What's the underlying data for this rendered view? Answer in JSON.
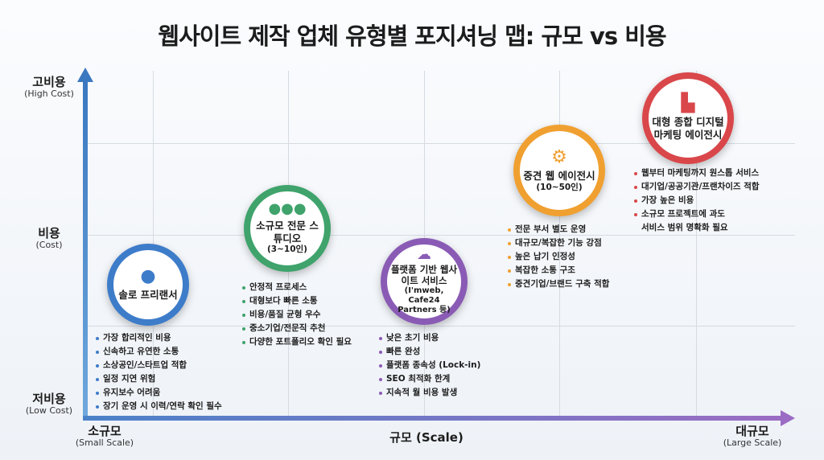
{
  "title": "웹사이트 제작 업체 유형별 포지셔닝 맵: 규모 vs 비용",
  "y_axis": {
    "high": {
      "label": "고비용",
      "sub": "(High Cost)"
    },
    "mid": {
      "label": "비용",
      "sub": "(Cost)"
    },
    "low": {
      "label": "저비용",
      "sub": "(Low Cost)"
    }
  },
  "x_axis": {
    "small": {
      "label": "소규모",
      "sub": "(Small Scale)"
    },
    "mid": {
      "label": "규모 (Scale)"
    },
    "large": {
      "label": "대규모",
      "sub": "(Large Scale)"
    }
  },
  "types": [
    {
      "name": "솔로 프리랜서",
      "sub": "",
      "icon": "person-icon",
      "color": "#3d7cc9",
      "points": [
        "가장 합리적인 비용",
        "신속하고 유연한 소통",
        "소상공인/스타트업 적합",
        "일정 지연 위험",
        "유지보수 어려움",
        "장기 운영 시 이력/연락 확인 필수"
      ]
    },
    {
      "name": "소규모 전문 스튜디오",
      "sub": "(3~10인)",
      "icon": "group-icon",
      "color": "#3fa36b",
      "points": [
        "안정적 프로세스",
        "대형보다 빠른 소통",
        "비용/품질 균형 우수",
        "중소기업/전문직 추천",
        "다양한 포트폴리오 확인 필요"
      ]
    },
    {
      "name": "플랫폼 기반 웹사이트 서비스",
      "sub": "(I'mweb, Cafe24 Partners 등)",
      "icon": "cloud-icon",
      "color": "#8a5bb5",
      "points": [
        "낮은 초기 비용",
        "빠른 완성",
        "플랫폼 종속성 (Lock-in)",
        "SEO 최적화 한계",
        "지속적 월 비용 발생"
      ]
    },
    {
      "name": "중견 웹 에이전시",
      "sub": "(10~50인)",
      "icon": "gears-icon",
      "color": "#f0a030",
      "points": [
        "전문 부서 별도 운영",
        "대규모/복잡한 기능 강점",
        "높은 납기 인정성",
        "복잡한 소통 구조",
        "중견기업/브랜드 구축 적합"
      ]
    },
    {
      "name": "대형 종합 디지털 마케팅 에이전시",
      "sub": "",
      "icon": "building-icon",
      "color": "#d9474a",
      "points": [
        "웹부터 마케팅까지 원스톱 서비스",
        "대기업/공공기관/프랜차이즈 적합",
        "가장 높은 비용",
        "소규모 프로젝트에 과도\n서비스 범위 명확화 필요"
      ]
    }
  ]
}
